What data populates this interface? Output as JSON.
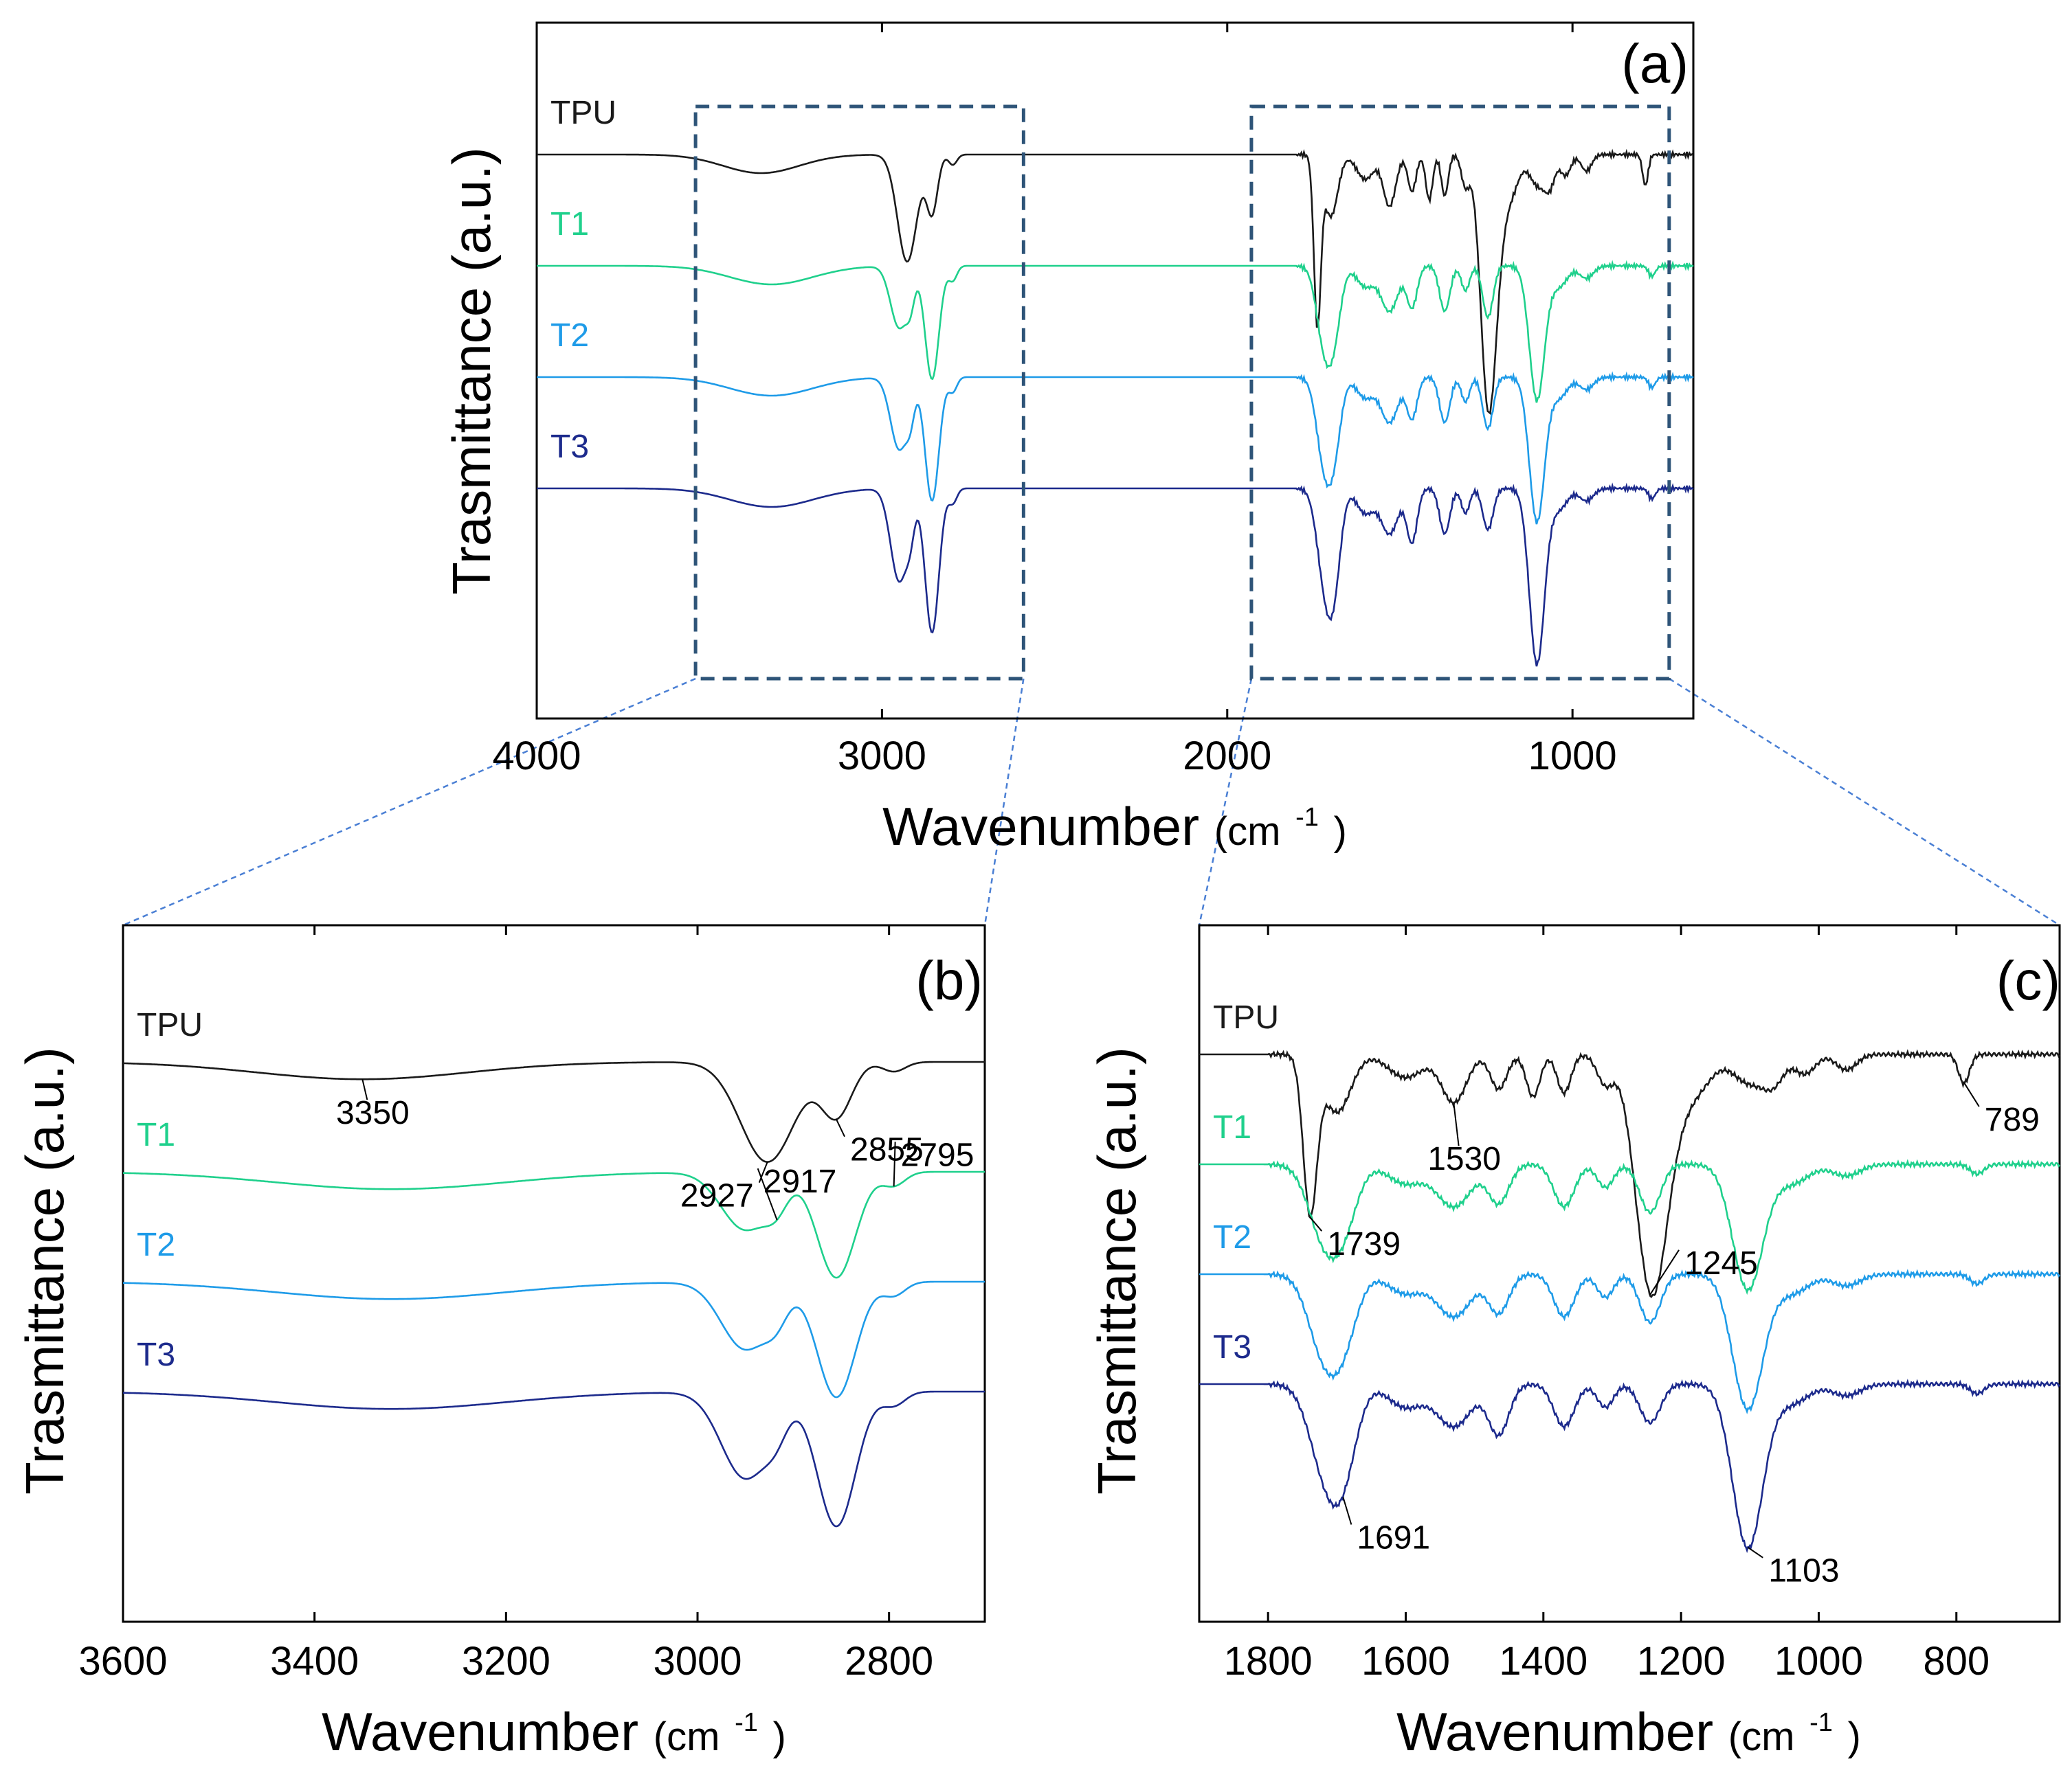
{
  "figure": {
    "y_axis_title": "Trasmittance (a.u.)",
    "x_axis_title_main": "Wavenumber",
    "x_axis_unit_prefix": "(cm",
    "x_axis_unit_exponent": "-1",
    "x_axis_unit_suffix": ")"
  },
  "series_colors": {
    "TPU": "#1a1a1a",
    "T1": "#1fd08c",
    "T2": "#1e9be8",
    "T3": "#1c2a8c"
  },
  "inset_box_color": "#2e5478",
  "connector_color": "#4a7fd4",
  "chart_data": [
    {
      "type": "line",
      "panel": "(a)",
      "x_ticks": [
        4000,
        3000,
        2000,
        1000
      ],
      "xlim": [
        4000,
        650
      ],
      "x_reversed": true,
      "y_ticks_shown": false,
      "series_order": [
        "TPU",
        "T1",
        "T2",
        "T3"
      ],
      "zoom_regions": [
        [
          3540,
          2590
        ],
        [
          1930,
          720
        ]
      ],
      "series": [
        {
          "name": "TPU",
          "offset": 0,
          "features": [
            [
              3350,
              0.09,
              110
            ],
            [
              2927,
              0.52,
              28
            ],
            [
              2855,
              0.28,
              16
            ],
            [
              2795,
              0.05,
              12
            ],
            [
              1739,
              0.8,
              10
            ],
            [
              1700,
              0.3,
              20
            ],
            [
              1600,
              0.12,
              25
            ],
            [
              1530,
              0.25,
              18
            ],
            [
              1465,
              0.18,
              12
            ],
            [
              1415,
              0.22,
              10
            ],
            [
              1370,
              0.2,
              10
            ],
            [
              1310,
              0.15,
              12
            ],
            [
              1245,
              1.0,
              22
            ],
            [
              1220,
              0.35,
              30
            ],
            [
              1170,
              0.1,
              20
            ],
            [
              1100,
              0.15,
              25
            ],
            [
              1065,
              0.12,
              15
            ],
            [
              1020,
              0.1,
              15
            ],
            [
              960,
              0.08,
              15
            ],
            [
              789,
              0.15,
              8
            ]
          ]
        },
        {
          "name": "T1",
          "offset": 1,
          "features": [
            [
              3320,
              0.09,
              120
            ],
            [
              2950,
              0.3,
              25
            ],
            [
              2917,
              0.12,
              12
            ],
            [
              2855,
              0.55,
              20
            ],
            [
              2795,
              0.07,
              12
            ],
            [
              1720,
              0.35,
              22
            ],
            [
              1690,
              0.28,
              20
            ],
            [
              1600,
              0.1,
              25
            ],
            [
              1530,
              0.22,
              25
            ],
            [
              1465,
              0.2,
              15
            ],
            [
              1370,
              0.22,
              15
            ],
            [
              1310,
              0.12,
              12
            ],
            [
              1245,
              0.25,
              15
            ],
            [
              1103,
              0.65,
              22
            ],
            [
              1040,
              0.1,
              25
            ],
            [
              960,
              0.06,
              20
            ],
            [
              770,
              0.05,
              10
            ]
          ]
        },
        {
          "name": "T2",
          "offset": 2,
          "features": [
            [
              3320,
              0.09,
              120
            ],
            [
              2950,
              0.35,
              25
            ],
            [
              2917,
              0.12,
              12
            ],
            [
              2855,
              0.6,
              20
            ],
            [
              2795,
              0.07,
              12
            ],
            [
              1720,
              0.38,
              22
            ],
            [
              1690,
              0.3,
              20
            ],
            [
              1600,
              0.1,
              25
            ],
            [
              1530,
              0.22,
              25
            ],
            [
              1465,
              0.2,
              15
            ],
            [
              1370,
              0.22,
              15
            ],
            [
              1310,
              0.12,
              12
            ],
            [
              1245,
              0.25,
              15
            ],
            [
              1103,
              0.7,
              22
            ],
            [
              1040,
              0.1,
              25
            ],
            [
              960,
              0.06,
              20
            ],
            [
              770,
              0.05,
              10
            ]
          ]
        },
        {
          "name": "T3",
          "offset": 3,
          "features": [
            [
              3320,
              0.09,
              120
            ],
            [
              2950,
              0.45,
              25
            ],
            [
              2917,
              0.12,
              12
            ],
            [
              2855,
              0.7,
              20
            ],
            [
              2795,
              0.07,
              12
            ],
            [
              1720,
              0.38,
              22
            ],
            [
              1691,
              0.42,
              20
            ],
            [
              1600,
              0.12,
              25
            ],
            [
              1530,
              0.22,
              25
            ],
            [
              1465,
              0.26,
              15
            ],
            [
              1370,
              0.22,
              15
            ],
            [
              1310,
              0.12,
              12
            ],
            [
              1245,
              0.2,
              15
            ],
            [
              1103,
              0.85,
              22
            ],
            [
              1040,
              0.1,
              25
            ],
            [
              960,
              0.06,
              20
            ],
            [
              770,
              0.05,
              10
            ]
          ]
        }
      ]
    },
    {
      "type": "line",
      "panel": "(b)",
      "x_ticks": [
        3600,
        3400,
        3200,
        3000,
        2800
      ],
      "xlim": [
        3600,
        2700
      ],
      "x_reversed": true,
      "y_ticks_shown": false,
      "series_order": [
        "TPU",
        "T1",
        "T2",
        "T3"
      ],
      "annotations": [
        {
          "text": "3350",
          "x": 3350,
          "series": "TPU"
        },
        {
          "text": "2927",
          "x": 2927,
          "series": "TPU"
        },
        {
          "text": "2855",
          "x": 2855,
          "series": "TPU"
        },
        {
          "text": "2917",
          "x": 2917,
          "series": "T1"
        },
        {
          "text": "2795",
          "x": 2795,
          "series": "T1"
        }
      ]
    },
    {
      "type": "line",
      "panel": "(c)",
      "x_ticks": [
        1800,
        1600,
        1400,
        1200,
        1000,
        800
      ],
      "xlim": [
        1900,
        650
      ],
      "x_reversed": true,
      "y_ticks_shown": false,
      "series_order": [
        "TPU",
        "T1",
        "T2",
        "T3"
      ],
      "annotations": [
        {
          "text": "1739",
          "x": 1739,
          "series": "TPU"
        },
        {
          "text": "1530",
          "x": 1530,
          "series": "TPU"
        },
        {
          "text": "1245",
          "x": 1245,
          "series": "TPU"
        },
        {
          "text": "789",
          "x": 789,
          "series": "TPU"
        },
        {
          "text": "1691",
          "x": 1691,
          "series": "T3"
        },
        {
          "text": "1103",
          "x": 1103,
          "series": "T3"
        }
      ]
    }
  ]
}
